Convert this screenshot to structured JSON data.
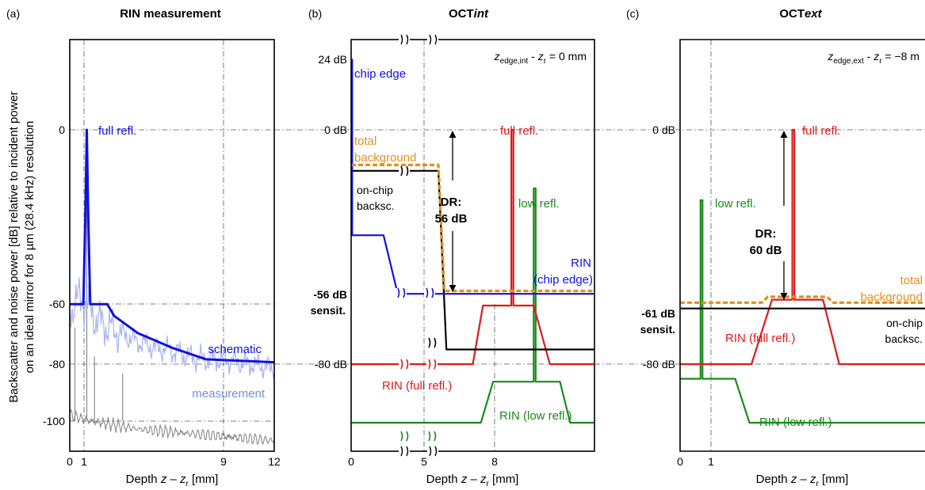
{
  "figure": {
    "ylabel_line1": "Backscatter and noise power [dB] relative to incident power",
    "ylabel_line2": "on an ideal mirror for 8 µm (28.4 kHz) resolution",
    "colors": {
      "blue": "#1010e0",
      "light_blue": "#a8b4f0",
      "gray": "#8c8c8c",
      "red": "#e01818",
      "green": "#1a8a1a",
      "orange": "#e0901c",
      "black": "#000000"
    }
  },
  "panels": {
    "a": {
      "letter": "(a)",
      "title": "RIN measurement",
      "xlabel_pre": "Depth ",
      "xlabel_z": "z",
      "xlabel_mid": " – ",
      "xlabel_zr": "z",
      "xlabel_r": "r",
      "xlabel_unit": " [mm]",
      "xticks": [
        "0",
        "1",
        "9",
        "12"
      ],
      "yticks": [
        "0",
        "-60",
        "-80",
        "-100"
      ],
      "labels": {
        "full_refl": "full refl.",
        "schematic": "schematic",
        "measurement": "measurement"
      }
    },
    "b": {
      "letter": "(b)",
      "title_a": "OCT",
      "title_b": "int",
      "xlabel_pre": "Depth ",
      "xlabel_z": "z",
      "xlabel_mid": " – ",
      "xlabel_zr": "z",
      "xlabel_r": "r",
      "xlabel_unit": " [mm]",
      "xticks": [
        "0",
        "5",
        "8"
      ],
      "yticks": [
        "24 dB",
        "0 dB",
        "-80 dB"
      ],
      "sens_value": "-56 dB",
      "sens_label": "sensit.",
      "eq_z": "z",
      "eq_sub": "edge,int",
      "eq_mid": " - ",
      "eq_zr": "z",
      "eq_r": "r",
      "eq_rest": " = 0 mm",
      "labels": {
        "chip_edge": "chip edge",
        "total_1": "total",
        "total_2": "background",
        "onchip_1": "on-chip",
        "onchip_2": "backsc.",
        "dr_1": "DR:",
        "dr_2": "56 dB",
        "full_refl": "full refl.",
        "low_refl": "low refl.",
        "rin_1": "RIN",
        "rin_2": "(chip edge)",
        "rin_full": "RIN (full refl.)",
        "rin_low": "RIN (low refl.)"
      }
    },
    "c": {
      "letter": "(c)",
      "title_a": "OCT",
      "title_b": "ext",
      "xlabel_pre": "Depth ",
      "xlabel_z": "z",
      "xlabel_mid": " – ",
      "xlabel_zr": "z",
      "xlabel_r": "r",
      "xlabel_unit": " [mm]",
      "xticks": [
        "0",
        "1"
      ],
      "yticks": [
        "0 dB",
        "-80 dB"
      ],
      "sens_value": "-61 dB",
      "sens_label": "sensit.",
      "eq_z": "z",
      "eq_sub": "edge,ext",
      "eq_mid": " - ",
      "eq_zr": "z",
      "eq_r": "r",
      "eq_rest": " = −8 m",
      "labels": {
        "full_refl": "full refl.",
        "low_refl": "low refl.",
        "dr_1": "DR:",
        "dr_2": "60 dB",
        "total_1": "total",
        "total_2": "background",
        "onchip_1": "on-chip",
        "onchip_2": "backsc.",
        "rin_full": "RIN (full refl.)",
        "rin_low": "RIN (low refl.)"
      }
    }
  },
  "chart_data": [
    {
      "type": "line",
      "title": "RIN measurement",
      "xlabel": "Depth z – zr [mm]",
      "ylabel": "Backscatter and noise power [dB] relative to incident power on an ideal mirror for 8 µm (28.4 kHz) resolution",
      "xlim": [
        0,
        12
      ],
      "ylim": [
        -108,
        40
      ],
      "xticks": [
        0,
        1,
        9,
        12
      ],
      "yticks": [
        0,
        -60,
        -80,
        -100
      ],
      "grid": "dash-dot at x=1, x=9, y=0, y=-60, y=-80, y=-100",
      "series": [
        {
          "name": "schematic",
          "x": [
            0,
            0.8,
            0.93,
            1.0,
            1.07,
            1.2,
            2.2,
            2.6,
            4.0,
            6.0,
            8.0,
            12.0
          ],
          "y": [
            -60,
            -60,
            -25,
            0,
            -25,
            -60,
            -60,
            -64,
            -70,
            -75,
            -79,
            -80
          ]
        },
        {
          "name": "measurement",
          "x": [
            0,
            0.5,
            1.0,
            1.5,
            2.0,
            3.0,
            4.0,
            5.0,
            6.0,
            7.0,
            8.0,
            9.0,
            10.0,
            11.0,
            12.0
          ],
          "y": [
            -62,
            -58,
            -60,
            -65,
            -67,
            -70,
            -73,
            -75,
            -76,
            -78,
            -79,
            -79,
            -80,
            -81,
            -82
          ]
        },
        {
          "name": "",
          "x": [
            0,
            1.0,
            2.0,
            3.0,
            4.0,
            6.0,
            8.0,
            10.0,
            12.0
          ],
          "y": [
            -98,
            -100,
            -101,
            -102,
            -103,
            -104,
            -105,
            -106,
            -107
          ]
        }
      ],
      "annotations": [
        "full refl.",
        "schematic",
        "measurement"
      ]
    },
    {
      "type": "line",
      "title": "OCTint",
      "xlabel": "Depth z – zr [mm]",
      "xlim": [
        0,
        12
      ],
      "ylim": [
        -105,
        40
      ],
      "xticks": [
        0,
        5,
        8
      ],
      "yticks_db": [
        24,
        0,
        -56,
        -80
      ],
      "series": [
        {
          "name": "chip edge",
          "x": [
            0,
            0.05,
            0.05,
            1.6,
            2.3,
            12
          ],
          "y": [
            24,
            24,
            -36,
            -36,
            -56,
            -56
          ]
        },
        {
          "name": "on-chip backsc.",
          "x": [
            0,
            4.3,
            4.7,
            12
          ],
          "y": [
            -14,
            -14,
            -75,
            -75
          ]
        },
        {
          "name": "total background",
          "x": [
            0,
            4.3,
            4.6,
            12
          ],
          "y": [
            -12,
            -12,
            -55,
            -55
          ]
        },
        {
          "name": "full refl.",
          "x": [
            0,
            5.5,
            6.0,
            6.5,
            7.9,
            7.9,
            8.0,
            8.0,
            8.5,
            9.0,
            9.8,
            12
          ],
          "y": [
            -80,
            -80,
            -80,
            -60,
            -60,
            0,
            0,
            -60,
            -60,
            -60,
            -80,
            -80
          ]
        },
        {
          "name": "low refl.",
          "x": [
            0,
            5.9,
            6.4,
            7.0,
            9.0,
            9.0,
            9.1,
            9.1,
            10.3,
            10.8,
            12
          ],
          "y": [
            -100,
            -100,
            -100,
            -86,
            -86,
            -20,
            -20,
            -86,
            -86,
            -100,
            -100
          ]
        }
      ],
      "annotations": [
        "chip edge",
        "total background",
        "on-chip backsc.",
        "DR: 56 dB",
        "full refl.",
        "low refl.",
        "RIN (chip edge)",
        "RIN (full refl.)",
        "RIN (low refl.)",
        "-56 dB sensit."
      ]
    },
    {
      "type": "line",
      "title": "OCText",
      "xlabel": "Depth z – zr [mm]",
      "xlim": [
        0,
        12
      ],
      "ylim": [
        -105,
        40
      ],
      "xticks": [
        0,
        1
      ],
      "yticks_db": [
        0,
        -61,
        -80
      ],
      "series": [
        {
          "name": "on-chip backsc.",
          "x": [
            0,
            12
          ],
          "y": [
            -61,
            -61
          ]
        },
        {
          "name": "total background",
          "x": [
            0,
            4.0,
            4.3,
            7.2,
            7.5,
            12
          ],
          "y": [
            -59,
            -59,
            -57,
            -57,
            -59,
            -59
          ]
        },
        {
          "name": "full refl.",
          "x": [
            0,
            3.5,
            4.5,
            5.5,
            5.5,
            5.6,
            5.6,
            7.0,
            7.8,
            12
          ],
          "y": [
            -80,
            -80,
            -58,
            -58,
            0,
            0,
            -58,
            -58,
            -80,
            -80
          ]
        },
        {
          "name": "low refl.",
          "x": [
            0,
            1.0,
            1.0,
            1.1,
            1.1,
            2.7,
            3.4,
            12
          ],
          "y": [
            -85,
            -85,
            -24,
            -24,
            -85,
            -85,
            -100,
            -100
          ]
        }
      ],
      "annotations": [
        "full refl.",
        "low refl.",
        "DR: 60 dB",
        "total background",
        "on-chip backsc.",
        "RIN (full refl.)",
        "RIN (low refl.)",
        "-61 dB sensit."
      ]
    }
  ]
}
